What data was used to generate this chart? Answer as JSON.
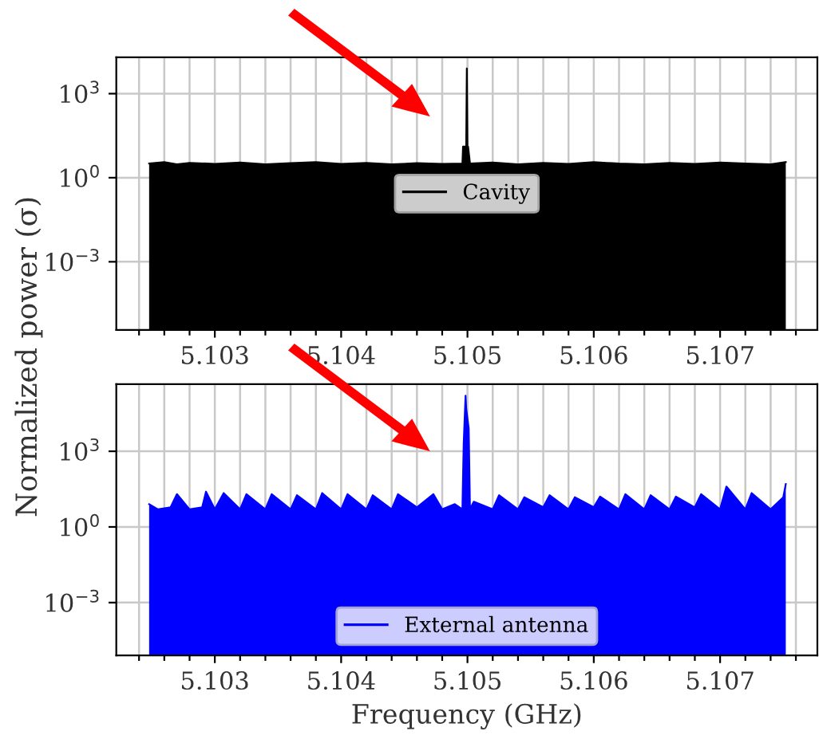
{
  "chart_data": [
    {
      "type": "area",
      "ylabel": "Normalized power (σ)",
      "log": "y",
      "grid": true,
      "legend": "center",
      "xlim": [
        5.10222,
        5.10777
      ],
      "ylim": [
        3.7e-06,
        20000
      ],
      "xticks": [
        {
          "value": 5.1024,
          "label": null
        },
        {
          "value": 5.1026,
          "label": null
        },
        {
          "value": 5.1028,
          "label": null
        },
        {
          "value": 5.103,
          "label": "5.103"
        },
        {
          "value": 5.1032,
          "label": null
        },
        {
          "value": 5.1034,
          "label": null
        },
        {
          "value": 5.1036,
          "label": null
        },
        {
          "value": 5.1038,
          "label": null
        },
        {
          "value": 5.104,
          "label": "5.104"
        },
        {
          "value": 5.1042,
          "label": null
        },
        {
          "value": 5.1044,
          "label": null
        },
        {
          "value": 5.1046,
          "label": null
        },
        {
          "value": 5.1048,
          "label": null
        },
        {
          "value": 5.105,
          "label": "5.105"
        },
        {
          "value": 5.1052,
          "label": null
        },
        {
          "value": 5.1054,
          "label": null
        },
        {
          "value": 5.1056,
          "label": null
        },
        {
          "value": 5.1058,
          "label": null
        },
        {
          "value": 5.106,
          "label": "5.106"
        },
        {
          "value": 5.1062,
          "label": null
        },
        {
          "value": 5.1064,
          "label": null
        },
        {
          "value": 5.1066,
          "label": null
        },
        {
          "value": 5.1068,
          "label": null
        },
        {
          "value": 5.107,
          "label": "5.107"
        },
        {
          "value": 5.1072,
          "label": null
        },
        {
          "value": 5.1074,
          "label": null
        },
        {
          "value": 5.1076,
          "label": null
        }
      ],
      "yticks": [
        {
          "value": 0.001,
          "label": "10$^{−3}$"
        },
        {
          "value": 1,
          "label": "10$^{0}$"
        },
        {
          "value": 1000,
          "label": "10$^{3}$"
        }
      ],
      "series": [
        {
          "name": "Cavity",
          "color": "#000000",
          "x": [
            5.10248,
            5.1026,
            5.1027,
            5.1028,
            5.103,
            5.1032,
            5.1034,
            5.1036,
            5.1038,
            5.104,
            5.1042,
            5.1044,
            5.1046,
            5.1048,
            5.10496,
            5.104965,
            5.10499,
            5.104995,
            5.105,
            5.105005,
            5.10502,
            5.1052,
            5.1054,
            5.1056,
            5.1058,
            5.106,
            5.1062,
            5.1064,
            5.1066,
            5.1068,
            5.107,
            5.1072,
            5.1074,
            5.10752
          ],
          "values": [
            3.2,
            3.6,
            3.0,
            3.4,
            3.1,
            3.5,
            3.0,
            3.3,
            3.6,
            3.1,
            3.4,
            3.0,
            3.3,
            3.1,
            3.2,
            13,
            13,
            8000,
            13,
            13,
            3.2,
            3.5,
            3.0,
            3.4,
            3.1,
            3.6,
            3.2,
            3.0,
            3.4,
            3.1,
            3.5,
            3.2,
            3.0,
            3.6
          ]
        }
      ]
    },
    {
      "type": "area",
      "xlabel": "Frequency (GHz)",
      "log": "y",
      "grid": true,
      "legend": "lower center",
      "xlim": [
        5.10222,
        5.10777
      ],
      "ylim": [
        8.1e-06,
        460000
      ],
      "xticks": [
        {
          "value": 5.1024,
          "label": null
        },
        {
          "value": 5.1026,
          "label": null
        },
        {
          "value": 5.1028,
          "label": null
        },
        {
          "value": 5.103,
          "label": "5.103"
        },
        {
          "value": 5.1032,
          "label": null
        },
        {
          "value": 5.1034,
          "label": null
        },
        {
          "value": 5.1036,
          "label": null
        },
        {
          "value": 5.1038,
          "label": null
        },
        {
          "value": 5.104,
          "label": "5.104"
        },
        {
          "value": 5.1042,
          "label": null
        },
        {
          "value": 5.1044,
          "label": null
        },
        {
          "value": 5.1046,
          "label": null
        },
        {
          "value": 5.1048,
          "label": null
        },
        {
          "value": 5.105,
          "label": "5.105"
        },
        {
          "value": 5.1052,
          "label": null
        },
        {
          "value": 5.1054,
          "label": null
        },
        {
          "value": 5.1056,
          "label": null
        },
        {
          "value": 5.1058,
          "label": null
        },
        {
          "value": 5.106,
          "label": "5.106"
        },
        {
          "value": 5.1062,
          "label": null
        },
        {
          "value": 5.1064,
          "label": null
        },
        {
          "value": 5.1066,
          "label": null
        },
        {
          "value": 5.1068,
          "label": null
        },
        {
          "value": 5.107,
          "label": "5.107"
        },
        {
          "value": 5.1072,
          "label": null
        },
        {
          "value": 5.1074,
          "label": null
        },
        {
          "value": 5.1076,
          "label": null
        }
      ],
      "yticks": [
        {
          "value": 0.001,
          "label": "10$^{−3}$"
        },
        {
          "value": 1,
          "label": "10$^{0}$"
        },
        {
          "value": 1000,
          "label": "10$^{3}$"
        }
      ],
      "series": [
        {
          "name": "External antenna",
          "color": "#0000ff",
          "x": [
            5.10248,
            5.10255,
            5.10265,
            5.1027,
            5.1028,
            5.1029,
            5.10293,
            5.103,
            5.10307,
            5.1032,
            5.10325,
            5.1034,
            5.10345,
            5.1036,
            5.10365,
            5.1038,
            5.10385,
            5.104,
            5.10405,
            5.1042,
            5.10425,
            5.1044,
            5.10445,
            5.1046,
            5.10473,
            5.1048,
            5.1049,
            5.10496,
            5.10497,
            5.104985,
            5.10499,
            5.10501,
            5.10502,
            5.10505,
            5.1052,
            5.10525,
            5.1054,
            5.10545,
            5.1056,
            5.10565,
            5.1058,
            5.10585,
            5.106,
            5.10605,
            5.1062,
            5.10625,
            5.1064,
            5.10645,
            5.1066,
            5.10665,
            5.1068,
            5.10685,
            5.107,
            5.10705,
            5.1072,
            5.10725,
            5.1074,
            5.1075,
            5.10752
          ],
          "values": [
            8,
            5,
            6,
            20,
            5,
            6,
            25,
            5,
            22,
            5,
            20,
            5,
            20,
            5,
            18,
            5,
            22,
            5,
            20,
            5,
            18,
            5,
            20,
            6,
            20,
            5,
            8,
            5,
            2000,
            160000,
            50000,
            8000,
            5,
            10,
            5,
            18,
            5,
            15,
            6,
            18,
            5,
            15,
            6,
            16,
            5,
            20,
            5,
            18,
            5,
            16,
            6,
            20,
            5,
            40,
            5,
            22,
            5,
            15,
            50
          ]
        }
      ]
    }
  ]
}
